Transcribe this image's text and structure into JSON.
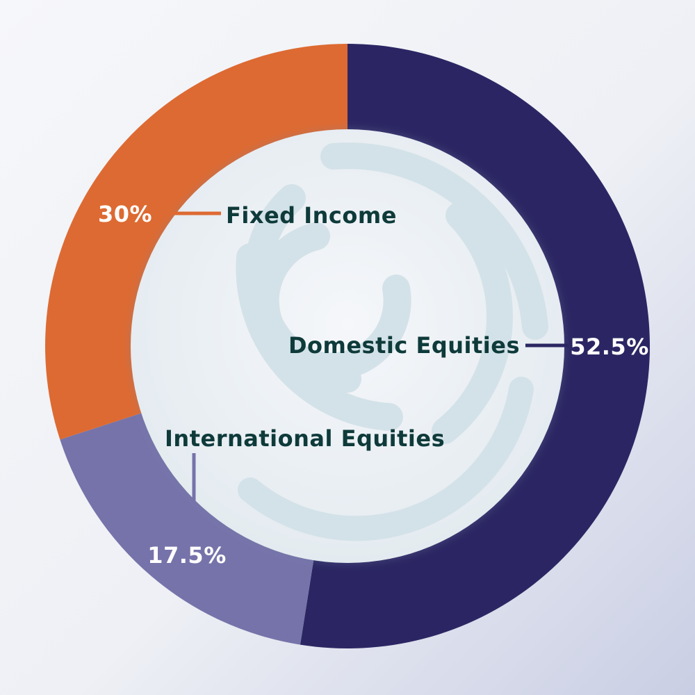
{
  "chart_data": {
    "type": "pie",
    "donut": true,
    "slices": [
      {
        "label": "Domestic Equities",
        "value": 52.5,
        "value_label": "52.5%",
        "color": "#2b2663"
      },
      {
        "label": "International Equities",
        "value": 17.5,
        "value_label": "17.5%",
        "color": "#7673aa"
      },
      {
        "label": "Fixed Income",
        "value": 30,
        "value_label": "30%",
        "color": "#dd6a32"
      }
    ],
    "start_angle": "top",
    "direction": "clockwise",
    "label_color": "#0e3a3a",
    "value_label_color": "#ffffff"
  }
}
